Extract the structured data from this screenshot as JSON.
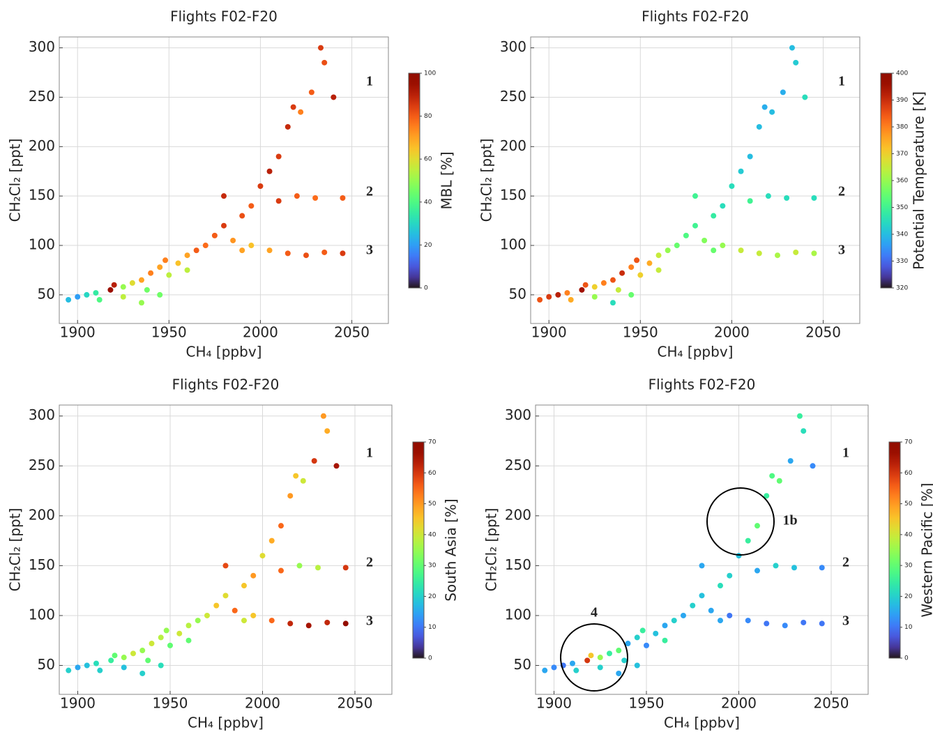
{
  "chart_data": [
    {
      "type": "scatter",
      "title": "Flights F02-F20",
      "xlabel": "CH₄ [ppbv]",
      "ylabel": "CH₂Cl₂ [ppt]",
      "xlim": [
        1890,
        2070
      ],
      "xticks": [
        1900,
        1950,
        2000,
        2050
      ],
      "ylim": [
        21,
        311
      ],
      "yticks": [
        50,
        100,
        150,
        200,
        250,
        300
      ],
      "grid": true,
      "colormap": "turbo",
      "colorbar_label": "MBL [%]",
      "clim": [
        0,
        100
      ],
      "cticks": [
        0,
        20,
        40,
        60,
        80,
        100
      ],
      "annotations": [
        "1",
        "2",
        "3"
      ],
      "x": [
        1895,
        1900,
        1905,
        1910,
        1912,
        1918,
        1920,
        1925,
        1930,
        1935,
        1938,
        1940,
        1945,
        1950,
        1948,
        1955,
        1960,
        1965,
        1970,
        1975,
        1980,
        1985,
        1990,
        1995,
        2000,
        2005,
        2010,
        2015,
        2018,
        2022,
        2028,
        2033,
        2035,
        2040,
        2010,
        2020,
        2030,
        2045,
        1995,
        2005,
        2015,
        2025,
        2035,
        2045,
        1935,
        1945,
        1925,
        1960,
        1990,
        1980
      ],
      "y": [
        45,
        48,
        50,
        52,
        45,
        55,
        60,
        58,
        62,
        65,
        55,
        72,
        78,
        70,
        85,
        82,
        90,
        95,
        100,
        110,
        120,
        105,
        130,
        140,
        160,
        175,
        190,
        220,
        240,
        235,
        255,
        300,
        285,
        250,
        145,
        150,
        148,
        148,
        100,
        95,
        92,
        90,
        93,
        92,
        42,
        50,
        48,
        75,
        95,
        150
      ],
      "color_values": [
        25,
        20,
        30,
        35,
        40,
        95,
        90,
        50,
        60,
        70,
        45,
        75,
        70,
        55,
        75,
        65,
        70,
        80,
        78,
        80,
        85,
        72,
        82,
        80,
        85,
        90,
        85,
        88,
        85,
        75,
        80,
        85,
        82,
        90,
        85,
        80,
        78,
        80,
        65,
        70,
        80,
        82,
        80,
        85,
        50,
        45,
        55,
        55,
        70,
        88
      ]
    },
    {
      "type": "scatter",
      "title": "Flights F02-F20",
      "xlabel": "CH₄ [ppbv]",
      "ylabel": "CH₂Cl₂ [ppt]",
      "xlim": [
        1890,
        2070
      ],
      "xticks": [
        1900,
        1950,
        2000,
        2050
      ],
      "ylim": [
        21,
        311
      ],
      "yticks": [
        50,
        100,
        150,
        200,
        250,
        300
      ],
      "grid": true,
      "colormap": "turbo",
      "colorbar_label": "Potential Temperature [K]",
      "clim": [
        320,
        400
      ],
      "cticks": [
        320,
        330,
        340,
        350,
        360,
        370,
        380,
        390,
        400
      ],
      "annotations": [
        "1",
        "2",
        "3"
      ],
      "x": [
        1895,
        1900,
        1905,
        1910,
        1912,
        1918,
        1920,
        1925,
        1930,
        1935,
        1938,
        1940,
        1945,
        1950,
        1948,
        1955,
        1960,
        1965,
        1970,
        1975,
        1980,
        1985,
        1990,
        1995,
        2000,
        2005,
        2010,
        2015,
        2018,
        2022,
        2028,
        2033,
        2035,
        2040,
        2010,
        2020,
        2030,
        2045,
        1995,
        2005,
        2015,
        2025,
        2035,
        2045,
        1935,
        1945,
        1925,
        1960,
        1990,
        1980
      ],
      "y": [
        45,
        48,
        50,
        52,
        45,
        55,
        60,
        58,
        62,
        65,
        55,
        72,
        78,
        70,
        85,
        82,
        90,
        95,
        100,
        110,
        120,
        105,
        130,
        140,
        160,
        175,
        190,
        220,
        240,
        235,
        255,
        300,
        285,
        250,
        145,
        150,
        148,
        148,
        100,
        95,
        92,
        90,
        93,
        92,
        42,
        50,
        48,
        75,
        95,
        150
      ],
      "color_values": [
        385,
        388,
        392,
        380,
        375,
        395,
        385,
        370,
        380,
        385,
        365,
        390,
        380,
        370,
        385,
        375,
        365,
        360,
        355,
        352,
        350,
        358,
        348,
        345,
        345,
        342,
        340,
        340,
        338,
        340,
        338,
        340,
        342,
        345,
        350,
        345,
        345,
        345,
        360,
        365,
        365,
        362,
        365,
        362,
        345,
        355,
        360,
        365,
        355,
        350
      ]
    },
    {
      "type": "scatter",
      "title": "Flights F02-F20",
      "xlabel": "CH₄ [ppbv]",
      "ylabel": "CH₂Cl₂ [ppt]",
      "xlim": [
        1890,
        2070
      ],
      "xticks": [
        1900,
        1950,
        2000,
        2050
      ],
      "ylim": [
        21,
        311
      ],
      "yticks": [
        50,
        100,
        150,
        200,
        250,
        300
      ],
      "grid": true,
      "colormap": "turbo",
      "colorbar_label": "South Asia [%]",
      "clim": [
        0,
        70
      ],
      "cticks": [
        0,
        10,
        20,
        30,
        40,
        50,
        60,
        70
      ],
      "annotations": [
        "1",
        "2",
        "3"
      ],
      "x": [
        1895,
        1900,
        1905,
        1910,
        1912,
        1918,
        1920,
        1925,
        1930,
        1935,
        1938,
        1940,
        1945,
        1950,
        1948,
        1955,
        1960,
        1965,
        1970,
        1975,
        1980,
        1985,
        1990,
        1995,
        2000,
        2005,
        2010,
        2015,
        2018,
        2022,
        2028,
        2033,
        2035,
        2040,
        2010,
        2020,
        2030,
        2045,
        1995,
        2005,
        2015,
        2025,
        2035,
        2045,
        1935,
        1945,
        1925,
        1960,
        1990,
        1980
      ],
      "y": [
        45,
        48,
        50,
        52,
        45,
        55,
        60,
        58,
        62,
        65,
        55,
        72,
        78,
        70,
        85,
        82,
        90,
        95,
        100,
        110,
        120,
        105,
        130,
        140,
        160,
        175,
        190,
        220,
        240,
        235,
        255,
        300,
        285,
        250,
        145,
        150,
        148,
        148,
        100,
        95,
        92,
        90,
        93,
        92,
        42,
        50,
        48,
        75,
        95,
        150
      ],
      "color_values": [
        20,
        15,
        18,
        22,
        20,
        25,
        30,
        35,
        40,
        35,
        30,
        40,
        38,
        30,
        35,
        40,
        38,
        35,
        40,
        45,
        42,
        55,
        45,
        50,
        42,
        48,
        55,
        50,
        45,
        40,
        60,
        50,
        48,
        65,
        55,
        35,
        38,
        60,
        45,
        55,
        62,
        65,
        62,
        68,
        20,
        22,
        18,
        30,
        40,
        58
      ]
    },
    {
      "type": "scatter",
      "title": "Flights F02-F20",
      "xlabel": "CH₄ [ppbv]",
      "ylabel": "CH₂Cl₂ [ppt]",
      "xlim": [
        1890,
        2070
      ],
      "xticks": [
        1900,
        1950,
        2000,
        2050
      ],
      "ylim": [
        21,
        311
      ],
      "yticks": [
        50,
        100,
        150,
        200,
        250,
        300
      ],
      "grid": true,
      "colormap": "turbo",
      "colorbar_label": "Western Pacific [%]",
      "clim": [
        0,
        70
      ],
      "cticks": [
        0,
        10,
        20,
        30,
        40,
        50,
        60,
        70
      ],
      "annotations": [
        "1",
        "1b",
        "2",
        "3",
        "4"
      ],
      "x": [
        1895,
        1900,
        1905,
        1910,
        1912,
        1918,
        1920,
        1925,
        1930,
        1935,
        1938,
        1940,
        1945,
        1950,
        1948,
        1955,
        1960,
        1965,
        1970,
        1975,
        1980,
        1985,
        1990,
        1995,
        2000,
        2005,
        2010,
        2015,
        2018,
        2022,
        2028,
        2033,
        2035,
        2040,
        2010,
        2020,
        2030,
        2045,
        1995,
        2005,
        2015,
        2025,
        2035,
        2045,
        1935,
        1945,
        1925,
        1960,
        1990,
        1980
      ],
      "y": [
        45,
        48,
        50,
        52,
        45,
        55,
        60,
        58,
        62,
        65,
        55,
        72,
        78,
        70,
        85,
        82,
        90,
        95,
        100,
        110,
        120,
        105,
        130,
        140,
        160,
        175,
        190,
        220,
        240,
        235,
        255,
        300,
        285,
        250,
        145,
        150,
        148,
        148,
        100,
        95,
        92,
        90,
        93,
        92,
        42,
        50,
        48,
        75,
        95,
        150
      ],
      "color_values": [
        15,
        12,
        10,
        15,
        20,
        60,
        45,
        35,
        25,
        30,
        20,
        15,
        20,
        12,
        25,
        18,
        15,
        20,
        15,
        20,
        18,
        15,
        22,
        20,
        18,
        25,
        30,
        25,
        28,
        30,
        15,
        25,
        22,
        12,
        15,
        20,
        18,
        12,
        10,
        12,
        10,
        12,
        10,
        10,
        15,
        18,
        20,
        25,
        15,
        15
      ]
    }
  ]
}
